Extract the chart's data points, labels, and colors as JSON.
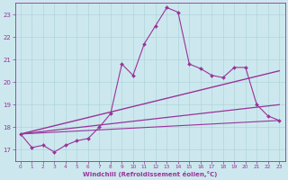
{
  "xlabel": "Windchill (Refroidissement éolien,°C)",
  "bg_color": "#cce8ee",
  "grid_color": "#b0d4dc",
  "line_color": "#993399",
  "xlim": [
    -0.5,
    23.5
  ],
  "ylim": [
    16.5,
    23.5
  ],
  "yticks": [
    17,
    18,
    19,
    20,
    21,
    22,
    23
  ],
  "xticks": [
    0,
    1,
    2,
    3,
    4,
    5,
    6,
    7,
    8,
    9,
    10,
    11,
    12,
    13,
    14,
    15,
    16,
    17,
    18,
    19,
    20,
    21,
    22,
    23
  ],
  "main_line": {
    "x": [
      0,
      1,
      2,
      3,
      4,
      5,
      6,
      7,
      8,
      9,
      10,
      11,
      12,
      13,
      14,
      15,
      16,
      17,
      18,
      19,
      20,
      21,
      22,
      23
    ],
    "y": [
      17.7,
      17.1,
      17.2,
      16.9,
      17.2,
      17.4,
      17.5,
      18.0,
      18.6,
      20.8,
      20.3,
      21.7,
      22.5,
      23.3,
      23.1,
      20.8,
      20.6,
      20.3,
      20.2,
      20.65,
      20.65,
      19.0,
      18.5,
      18.3
    ],
    "marker": "D",
    "markersize": 2.0,
    "linewidth": 0.8
  },
  "straight_lines": [
    {
      "x0": 0.0,
      "y0": 17.7,
      "x1": 23.0,
      "y1": 20.5,
      "linewidth": 1.0
    },
    {
      "x0": 0.0,
      "y0": 17.7,
      "x1": 23.0,
      "y1": 19.0,
      "linewidth": 0.9
    },
    {
      "x0": 0.0,
      "y0": 17.7,
      "x1": 23.0,
      "y1": 18.3,
      "linewidth": 0.8
    }
  ]
}
